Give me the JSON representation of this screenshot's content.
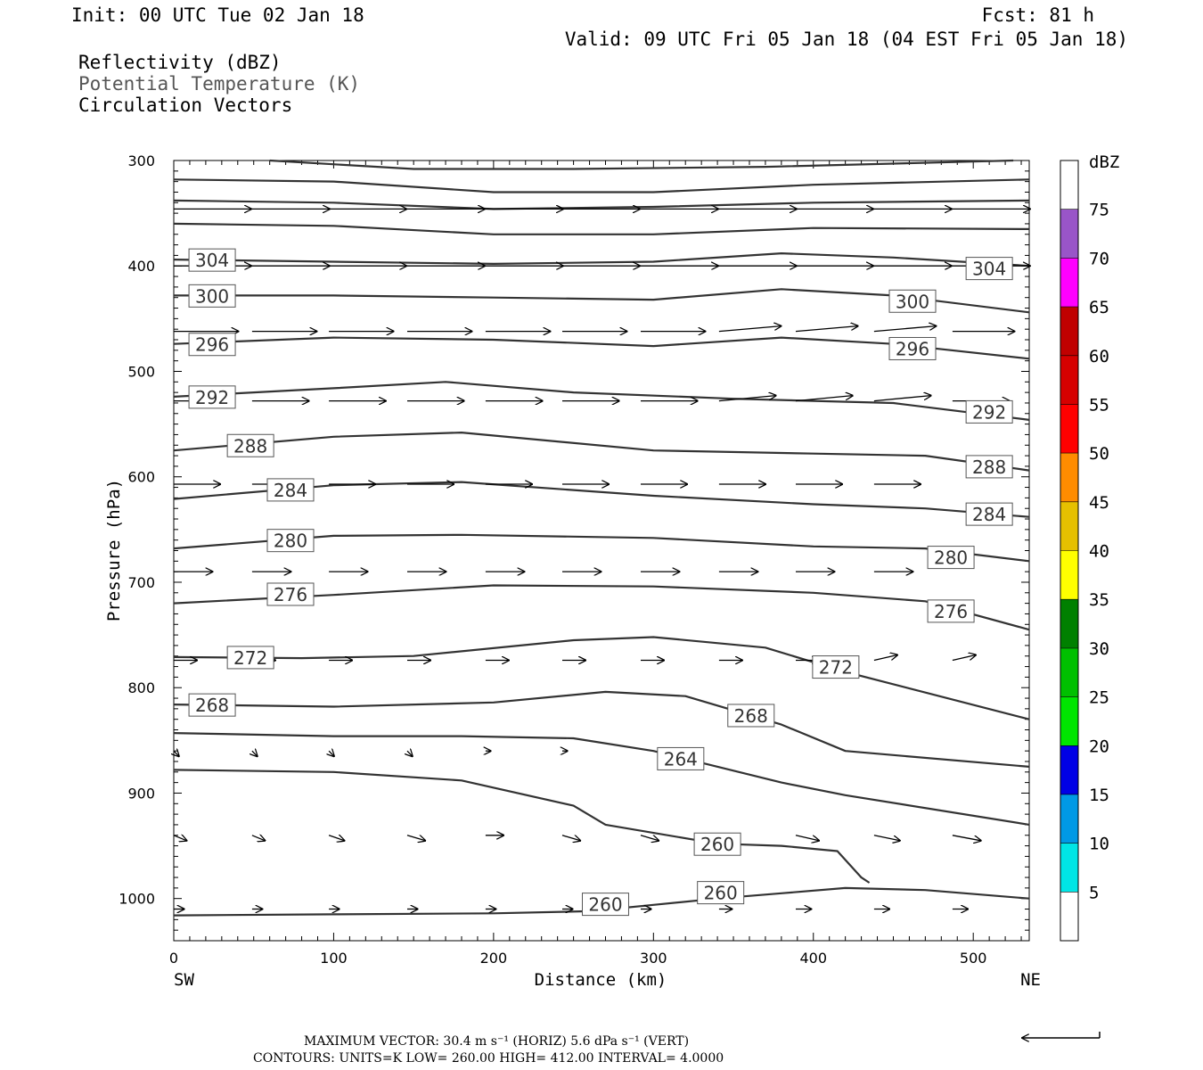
{
  "header": {
    "init": "Init: 00 UTC Tue 02 Jan 18",
    "fcst": "Fcst:   81 h",
    "valid": "Valid: 09 UTC Fri 05 Jan 18 (04 EST Fri 05 Jan 18)",
    "fields": [
      {
        "text": "Reflectivity (dBZ)",
        "color": "#000000"
      },
      {
        "text": "Potential Temperature (K)",
        "color": "#555555"
      },
      {
        "text": "Circulation Vectors",
        "color": "#000000"
      }
    ]
  },
  "chart_data": {
    "type": "cross-section",
    "xlabel": "Distance (km)",
    "ylabel": "Pressure (hPa)",
    "xlim": [
      0,
      535
    ],
    "ylim": [
      1040,
      300
    ],
    "x_ticks": [
      0,
      100,
      200,
      300,
      400,
      500
    ],
    "y_ticks": [
      300,
      400,
      500,
      600,
      700,
      800,
      900,
      1000
    ],
    "x_end_labels": {
      "left": "SW",
      "right": "NE"
    },
    "contour_lines": [
      {
        "level": null,
        "points": [
          [
            60,
            300
          ],
          [
            150,
            308
          ],
          [
            250,
            308
          ],
          [
            370,
            306
          ],
          [
            500,
            301
          ],
          [
            525,
            300
          ]
        ]
      },
      {
        "level": null,
        "points": [
          [
            0,
            318
          ],
          [
            100,
            320
          ],
          [
            200,
            330
          ],
          [
            300,
            330
          ],
          [
            400,
            323
          ],
          [
            535,
            318
          ]
        ]
      },
      {
        "level": null,
        "points": [
          [
            0,
            338
          ],
          [
            100,
            340
          ],
          [
            200,
            346
          ],
          [
            300,
            344
          ],
          [
            400,
            340
          ],
          [
            535,
            338
          ]
        ]
      },
      {
        "level": null,
        "points": [
          [
            0,
            360
          ],
          [
            100,
            362
          ],
          [
            200,
            370
          ],
          [
            300,
            370
          ],
          [
            400,
            364
          ],
          [
            535,
            365
          ]
        ]
      },
      {
        "level": "304",
        "points": [
          [
            0,
            394
          ],
          [
            100,
            396
          ],
          [
            200,
            398
          ],
          [
            300,
            396
          ],
          [
            380,
            388
          ],
          [
            450,
            392
          ],
          [
            535,
            400
          ]
        ]
      },
      {
        "level": "300",
        "points": [
          [
            0,
            428
          ],
          [
            100,
            428
          ],
          [
            200,
            430
          ],
          [
            300,
            432
          ],
          [
            380,
            422
          ],
          [
            450,
            428
          ],
          [
            535,
            444
          ]
        ]
      },
      {
        "level": "296",
        "points": [
          [
            0,
            474
          ],
          [
            100,
            468
          ],
          [
            200,
            470
          ],
          [
            300,
            476
          ],
          [
            380,
            468
          ],
          [
            450,
            474
          ],
          [
            535,
            488
          ]
        ]
      },
      {
        "level": "292",
        "points": [
          [
            0,
            524
          ],
          [
            100,
            516
          ],
          [
            170,
            510
          ],
          [
            250,
            520
          ],
          [
            350,
            526
          ],
          [
            450,
            530
          ],
          [
            535,
            546
          ]
        ]
      },
      {
        "level": "288",
        "points": [
          [
            0,
            575
          ],
          [
            100,
            562
          ],
          [
            180,
            558
          ],
          [
            300,
            575
          ],
          [
            400,
            578
          ],
          [
            470,
            580
          ],
          [
            535,
            594
          ]
        ]
      },
      {
        "level": "284",
        "points": [
          [
            0,
            621
          ],
          [
            100,
            608
          ],
          [
            180,
            605
          ],
          [
            300,
            618
          ],
          [
            400,
            626
          ],
          [
            470,
            630
          ],
          [
            535,
            638
          ]
        ]
      },
      {
        "level": "280",
        "points": [
          [
            0,
            668
          ],
          [
            100,
            656
          ],
          [
            180,
            655
          ],
          [
            300,
            658
          ],
          [
            400,
            666
          ],
          [
            470,
            668
          ],
          [
            535,
            680
          ]
        ]
      },
      {
        "level": "276",
        "points": [
          [
            0,
            720
          ],
          [
            100,
            712
          ],
          [
            200,
            703
          ],
          [
            300,
            704
          ],
          [
            400,
            710
          ],
          [
            470,
            718
          ],
          [
            535,
            745
          ]
        ]
      },
      {
        "level": "272",
        "points": [
          [
            0,
            771
          ],
          [
            80,
            772
          ],
          [
            150,
            770
          ],
          [
            250,
            755
          ],
          [
            300,
            752
          ],
          [
            370,
            762
          ],
          [
            420,
            785
          ],
          [
            535,
            830
          ]
        ]
      },
      {
        "level": "268",
        "points": [
          [
            0,
            816
          ],
          [
            100,
            818
          ],
          [
            200,
            814
          ],
          [
            270,
            804
          ],
          [
            320,
            808
          ],
          [
            380,
            835
          ],
          [
            420,
            860
          ],
          [
            535,
            875
          ]
        ]
      },
      {
        "level": "264",
        "points": [
          [
            0,
            843
          ],
          [
            100,
            846
          ],
          [
            180,
            846
          ],
          [
            250,
            848
          ],
          [
            300,
            860
          ],
          [
            380,
            890
          ],
          [
            420,
            902
          ],
          [
            535,
            930
          ]
        ]
      },
      {
        "level": "260",
        "points": [
          [
            0,
            878
          ],
          [
            100,
            880
          ],
          [
            180,
            888
          ],
          [
            250,
            912
          ],
          [
            270,
            930
          ],
          [
            340,
            948
          ],
          [
            380,
            950
          ],
          [
            415,
            955
          ],
          [
            430,
            980
          ],
          [
            435,
            985
          ]
        ]
      },
      {
        "level": "260",
        "points": [
          [
            0,
            1016
          ],
          [
            100,
            1015
          ],
          [
            200,
            1014
          ],
          [
            260,
            1012
          ],
          [
            300,
            1006
          ],
          [
            340,
            1000
          ],
          [
            380,
            995
          ],
          [
            420,
            990
          ],
          [
            470,
            992
          ],
          [
            535,
            1000
          ]
        ]
      }
    ],
    "contour_labels": [
      {
        "text": "304",
        "x": 24,
        "p": 394
      },
      {
        "text": "304",
        "x": 510,
        "p": 402
      },
      {
        "text": "300",
        "x": 24,
        "p": 428
      },
      {
        "text": "300",
        "x": 462,
        "p": 433
      },
      {
        "text": "296",
        "x": 24,
        "p": 474
      },
      {
        "text": "296",
        "x": 462,
        "p": 478
      },
      {
        "text": "292",
        "x": 24,
        "p": 524
      },
      {
        "text": "292",
        "x": 510,
        "p": 538
      },
      {
        "text": "288",
        "x": 48,
        "p": 570
      },
      {
        "text": "288",
        "x": 510,
        "p": 590
      },
      {
        "text": "284",
        "x": 73,
        "p": 612
      },
      {
        "text": "284",
        "x": 510,
        "p": 635
      },
      {
        "text": "280",
        "x": 73,
        "p": 660
      },
      {
        "text": "280",
        "x": 486,
        "p": 676
      },
      {
        "text": "276",
        "x": 73,
        "p": 711
      },
      {
        "text": "276",
        "x": 486,
        "p": 727
      },
      {
        "text": "272",
        "x": 48,
        "p": 771
      },
      {
        "text": "272",
        "x": 414,
        "p": 780
      },
      {
        "text": "268",
        "x": 24,
        "p": 816
      },
      {
        "text": "268",
        "x": 361,
        "p": 826
      },
      {
        "text": "264",
        "x": 317,
        "p": 867
      },
      {
        "text": "260",
        "x": 340,
        "p": 948
      },
      {
        "text": "260",
        "x": 342,
        "p": 994
      },
      {
        "text": "260",
        "x": 270,
        "p": 1005
      }
    ],
    "vectors": {
      "x": [
        0,
        49,
        97,
        146,
        195,
        243,
        292,
        341,
        389,
        438,
        487
      ],
      "rows": [
        {
          "p": 346,
          "u": [
            30,
            30,
            30,
            30,
            30,
            30,
            30,
            30,
            30,
            30,
            30
          ],
          "w": [
            0,
            0,
            0,
            0,
            0,
            0,
            0,
            0,
            0,
            0,
            0
          ]
        },
        {
          "p": 400,
          "u": [
            30,
            30,
            30,
            30,
            30,
            30,
            30,
            30,
            30,
            30,
            30
          ],
          "w": [
            0,
            0,
            0,
            0,
            0,
            0,
            0,
            0,
            0,
            0,
            0
          ]
        },
        {
          "p": 462,
          "u": [
            25,
            25,
            25,
            25,
            25,
            25,
            25,
            24,
            24,
            24,
            24
          ],
          "w": [
            0,
            0,
            0,
            0,
            0,
            0,
            0,
            -1,
            -1,
            -1,
            0
          ]
        },
        {
          "p": 528,
          "u": [
            22,
            22,
            22,
            22,
            22,
            22,
            22,
            22,
            22,
            22,
            22
          ],
          "w": [
            0,
            0,
            0,
            0,
            0,
            0,
            0,
            -1,
            -1,
            -1,
            0
          ]
        },
        {
          "p": 607,
          "u": [
            18,
            18,
            18,
            18,
            18,
            18,
            18,
            18,
            18,
            18,
            0
          ],
          "w": [
            0,
            0,
            0,
            0,
            0,
            0,
            0,
            0,
            0,
            0,
            0
          ]
        },
        {
          "p": 690,
          "u": [
            15,
            15,
            15,
            15,
            15,
            15,
            15,
            15,
            15,
            15,
            0
          ],
          "w": [
            0,
            0,
            0,
            0,
            0,
            0,
            0,
            0,
            0,
            0,
            0
          ]
        },
        {
          "p": 774,
          "u": [
            9,
            9,
            9,
            9,
            9,
            9,
            9,
            9,
            9,
            9,
            9
          ],
          "w": [
            0,
            0,
            0,
            0,
            0,
            0,
            0,
            0,
            0,
            -1,
            -1
          ]
        },
        {
          "p": 860,
          "u": [
            2,
            2,
            2,
            2,
            2,
            2,
            0,
            0,
            0,
            0,
            0
          ],
          "w": [
            1,
            1,
            1,
            1,
            0,
            0,
            0,
            0,
            0,
            0,
            0
          ]
        },
        {
          "p": 940,
          "u": [
            5,
            5,
            6,
            7,
            7,
            7,
            7,
            8,
            9,
            10,
            11
          ],
          "w": [
            1,
            1,
            1,
            1,
            0,
            1,
            1,
            1,
            1,
            1,
            1
          ]
        },
        {
          "p": 1010,
          "u": [
            4,
            4,
            4,
            4,
            4,
            4,
            4,
            5,
            6,
            6,
            6
          ],
          "w": [
            0,
            0,
            0,
            0,
            0,
            0,
            0,
            0,
            0,
            0,
            0
          ]
        }
      ]
    },
    "colorbar": {
      "title": "dBZ",
      "levels": [
        "5",
        "10",
        "15",
        "20",
        "25",
        "30",
        "35",
        "40",
        "45",
        "50",
        "55",
        "60",
        "65",
        "70",
        "75"
      ],
      "colors": [
        "#ffffff",
        "#00e6e6",
        "#0099e6",
        "#0000e6",
        "#00e600",
        "#00c000",
        "#008000",
        "#ffff00",
        "#e6c000",
        "#ff8c00",
        "#ff0000",
        "#d60000",
        "#c00000",
        "#ff00ff",
        "#9955c8",
        "#ffffff"
      ]
    }
  },
  "footer": {
    "max_vector_line": "MAXIMUM VECTOR:  30.4 m s⁻¹ (HORIZ)          5.6 dPa s⁻¹ (VERT)",
    "contours_line": "CONTOURS:  UNITS=K  LOW=  260.00        HIGH=  412.00        INTERVAL=    4.0000"
  }
}
